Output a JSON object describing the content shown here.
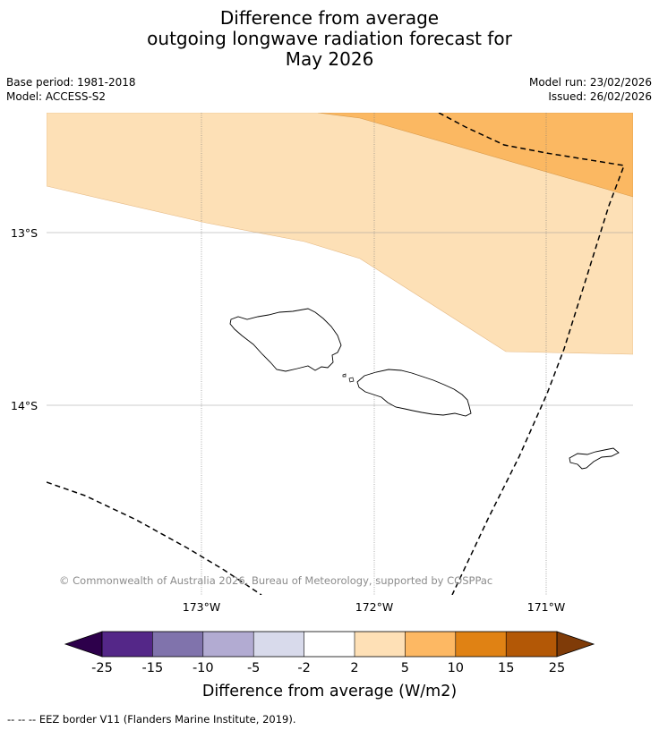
{
  "title": {
    "line1": "Difference from average",
    "line2": "outgoing longwave radiation forecast for",
    "line3": "May 2026"
  },
  "meta": {
    "base_period": "Base period: 1981-2018",
    "model": "Model: ACCESS-S2",
    "model_run": "Model run: 23/02/2026",
    "issued": "Issued: 26/02/2026"
  },
  "map": {
    "lat_labels": [
      "13°S",
      "14°S"
    ],
    "lon_labels": [
      "173°W",
      "172°W",
      "171°W"
    ],
    "copyright": "© Commonwealth of Australia 2026, Bureau of Meteorology, supported by COSPPac",
    "colors": {
      "band_2_5": "#fde0b6",
      "band_5_10": "#fbb862",
      "eez_line": "#000000",
      "graticule": "#888888"
    }
  },
  "colorbar": {
    "tick_labels": [
      "-25",
      "-15",
      "-10",
      "-5",
      "-2",
      "2",
      "5",
      "10",
      "15",
      "25"
    ],
    "label": "Difference from average (W/m2)",
    "colors": [
      "#2d004b",
      "#542788",
      "#8073ac",
      "#b2abd2",
      "#d8daeb",
      "#ffffff",
      "#fee0b6",
      "#fdb863",
      "#e08214",
      "#b35806",
      "#7f3b08"
    ]
  },
  "footnote": "--  --  -- EEZ border V11 (Flanders Marine Institute, 2019)."
}
